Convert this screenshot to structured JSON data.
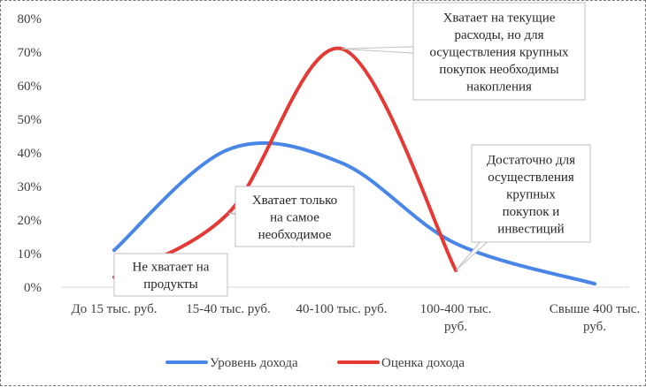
{
  "chart_data": {
    "type": "line",
    "title": "",
    "xlabel": "",
    "ylabel": "",
    "categories": [
      [
        "До 15 тыс. руб."
      ],
      [
        "15-40 тыс. руб."
      ],
      [
        "40-100 тыс. руб."
      ],
      [
        "100-400 тыс.",
        "руб."
      ],
      [
        "Свыше 400 тыс.",
        "руб."
      ]
    ],
    "ylim": [
      0,
      0.8
    ],
    "yticks": [
      "0%",
      "10%",
      "20%",
      "30%",
      "40%",
      "50%",
      "60%",
      "70%",
      "80%"
    ],
    "grid": false,
    "legend_position": "bottom",
    "series": [
      {
        "name": "Уровень дохода",
        "color": "#4a86e8",
        "values": [
          0.11,
          0.41,
          0.37,
          0.13,
          0.01
        ]
      },
      {
        "name": "Оценка дохода",
        "color": "#e53935",
        "values": [
          0.03,
          0.22,
          0.71,
          0.05,
          null
        ]
      }
    ],
    "annotations": [
      {
        "series": 1,
        "point": 0,
        "lines": [
          "Не хватает на",
          "продукты"
        ]
      },
      {
        "series": 1,
        "point": 1,
        "lines": [
          "Хватает только",
          "на самое",
          "необходимое"
        ]
      },
      {
        "series": 1,
        "point": 2,
        "lines": [
          "Хватает на текущие",
          "расходы, но для",
          "осуществления крупных",
          "покупок необходимы",
          "накопления"
        ]
      },
      {
        "series": 1,
        "point": 3,
        "lines": [
          "Достаточно для",
          "осуществления",
          "крупных",
          "покупок и",
          "инвестиций"
        ]
      }
    ]
  }
}
